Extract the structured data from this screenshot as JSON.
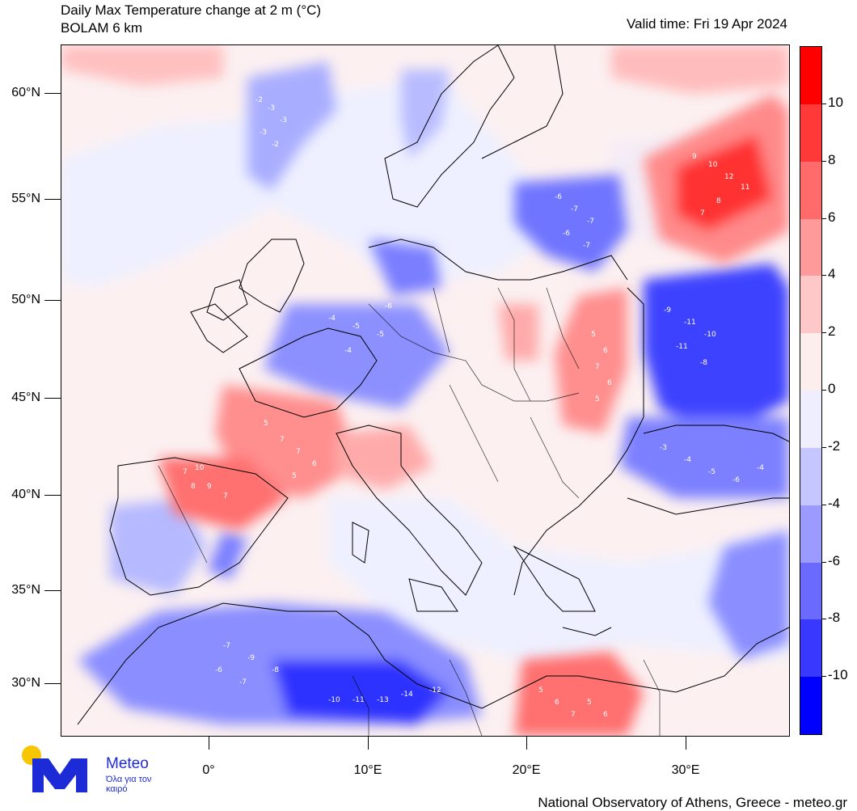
{
  "header": {
    "title_line1": "Daily Max Temperature change at 2 m (°C)",
    "title_line2": "BOLAM 6 km",
    "valid_time": "Valid time: Fri 19 Apr 2024"
  },
  "axes": {
    "lat_labels": [
      "60°N",
      "55°N",
      "50°N",
      "45°N",
      "40°N",
      "35°N",
      "30°N"
    ],
    "lon_labels": [
      "0°",
      "10°E",
      "20°E",
      "30°E"
    ]
  },
  "colorbar": {
    "labels": [
      "10",
      "8",
      "6",
      "4",
      "2",
      "0",
      "-2",
      "-4",
      "-6",
      "-8",
      "-10"
    ],
    "colors": [
      "#ff0000",
      "#ff3838",
      "#ff6a6a",
      "#ff9a9a",
      "#ffc8c8",
      "#fdeeee",
      "#eeeeff",
      "#c6c6ff",
      "#9a9aff",
      "#6a6aff",
      "#3838ff",
      "#0000ff"
    ]
  },
  "map_values": {
    "scandinavia_west": [
      "-2",
      "-3",
      "-3",
      "-3",
      "-2"
    ],
    "russia_northeast": [
      "9",
      "10",
      "12",
      "11",
      "8",
      "7"
    ],
    "baltic": [
      "-6",
      "-7",
      "-7",
      "-6",
      "-7"
    ],
    "ukraine_blue": [
      "-9",
      "-11",
      "-10",
      "-11",
      "-8"
    ],
    "romania_red": [
      "5",
      "6",
      "7",
      "6",
      "5"
    ],
    "france_red": [
      "5",
      "7",
      "7",
      "6",
      "5"
    ],
    "spain_red": [
      "7",
      "10",
      "8",
      "9",
      "7"
    ],
    "germany_blue": [
      "-4",
      "-5",
      "-6",
      "-5",
      "-4"
    ],
    "libya_blue": [
      "-10",
      "-11",
      "-13",
      "-14",
      "-12"
    ],
    "algeria_blue": [
      "-7",
      "-9",
      "-8",
      "-7",
      "-6"
    ],
    "egypt_red": [
      "5",
      "6",
      "7",
      "5",
      "6"
    ],
    "turkey_blue": [
      "-3",
      "-4",
      "-5",
      "-6",
      "-4"
    ]
  },
  "branding": {
    "logo_name": "Meteo",
    "logo_tagline": "Όλα για τον καιρό",
    "footer": "National Observatory of Athens, Greece - meteo.gr"
  }
}
